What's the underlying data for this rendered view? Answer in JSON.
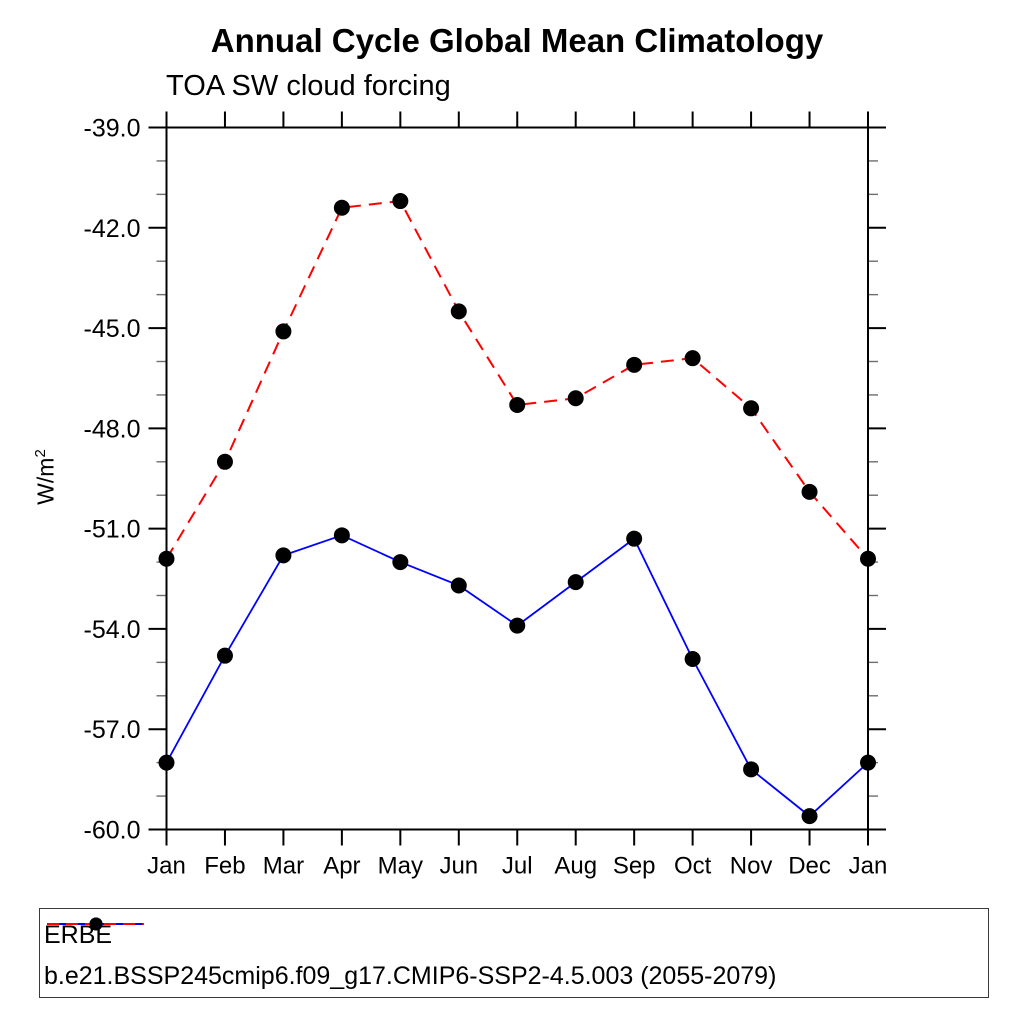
{
  "chart_data": {
    "type": "line",
    "title": "Annual Cycle Global Mean Climatology",
    "subtitle": "TOA SW cloud forcing",
    "ylabel": "W/m²",
    "ylabel_base": "W/m",
    "ylabel_exp": "2",
    "ylim": [
      -60.0,
      -39.0
    ],
    "y_major_step": 3.0,
    "y_minor_step": 1.0,
    "y_tick_labels": [
      "-39.0",
      "-42.0",
      "-45.0",
      "-48.0",
      "-51.0",
      "-54.0",
      "-57.0",
      "-60.0"
    ],
    "grid": false,
    "legend_position": "bottom",
    "categories": [
      "Jan",
      "Feb",
      "Mar",
      "Apr",
      "May",
      "Jun",
      "Jul",
      "Aug",
      "Sep",
      "Oct",
      "Nov",
      "Dec",
      "Jan"
    ],
    "series": [
      {
        "name": "ERBE",
        "color": "#0000ff",
        "line_style": "solid",
        "marker": "filled-circle",
        "marker_color": "#000000",
        "values": [
          -58.0,
          -54.8,
          -51.8,
          -51.2,
          -52.0,
          -52.7,
          -53.9,
          -52.6,
          -51.3,
          -54.9,
          -58.2,
          -59.6,
          -58.0
        ]
      },
      {
        "name": "b.e21.BSSP245cmip6.f09_g17.CMIP6-SSP2-4.5.003 (2055-2079)",
        "color": "#ff0000",
        "line_style": "dashed",
        "marker": "filled-circle",
        "marker_color": "#000000",
        "values": [
          -51.9,
          -49.0,
          -45.1,
          -41.4,
          -41.2,
          -44.5,
          -47.3,
          -47.1,
          -46.1,
          -45.9,
          -47.4,
          -49.9,
          -51.9
        ]
      }
    ]
  }
}
